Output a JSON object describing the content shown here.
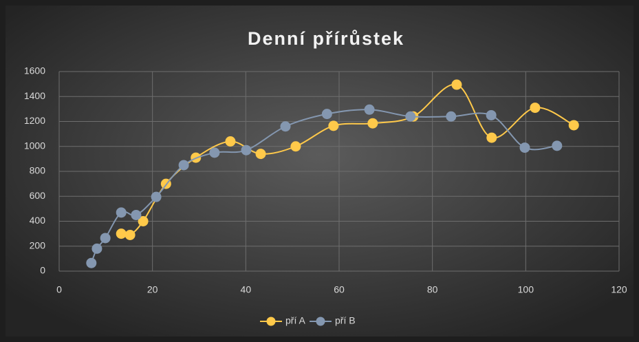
{
  "chart_data": {
    "type": "scatter",
    "title": "Denní přírůstek",
    "xlim": [
      0,
      120
    ],
    "xticks": [
      0,
      20,
      40,
      60,
      80,
      100,
      120
    ],
    "ylim": [
      0,
      1600
    ],
    "yticks": [
      0,
      200,
      400,
      600,
      800,
      1000,
      1200,
      1400,
      1600
    ],
    "grid": true,
    "smooth": true,
    "legend": "bottom",
    "series": [
      {
        "name": "pří A",
        "color": "#ffc94a",
        "x": [
          13.3,
          15.2,
          18.0,
          22.9,
          29.3,
          36.7,
          43.2,
          50.7,
          58.8,
          67.2,
          75.9,
          85.2,
          92.7,
          102.0,
          110.3
        ],
        "values": [
          300,
          290,
          400,
          700,
          910,
          1040,
          940,
          1000,
          1165,
          1185,
          1240,
          1495,
          1070,
          1310,
          1170
        ]
      },
      {
        "name": "pří B",
        "color": "#8497b0",
        "x": [
          6.9,
          8.1,
          9.9,
          13.3,
          16.5,
          20.8,
          26.7,
          33.3,
          40.1,
          48.5,
          57.4,
          66.5,
          75.3,
          84.0,
          92.6,
          99.8,
          106.7
        ],
        "values": [
          65,
          180,
          265,
          470,
          450,
          595,
          850,
          950,
          970,
          1160,
          1260,
          1295,
          1240,
          1240,
          1250,
          990,
          1005
        ]
      }
    ]
  }
}
